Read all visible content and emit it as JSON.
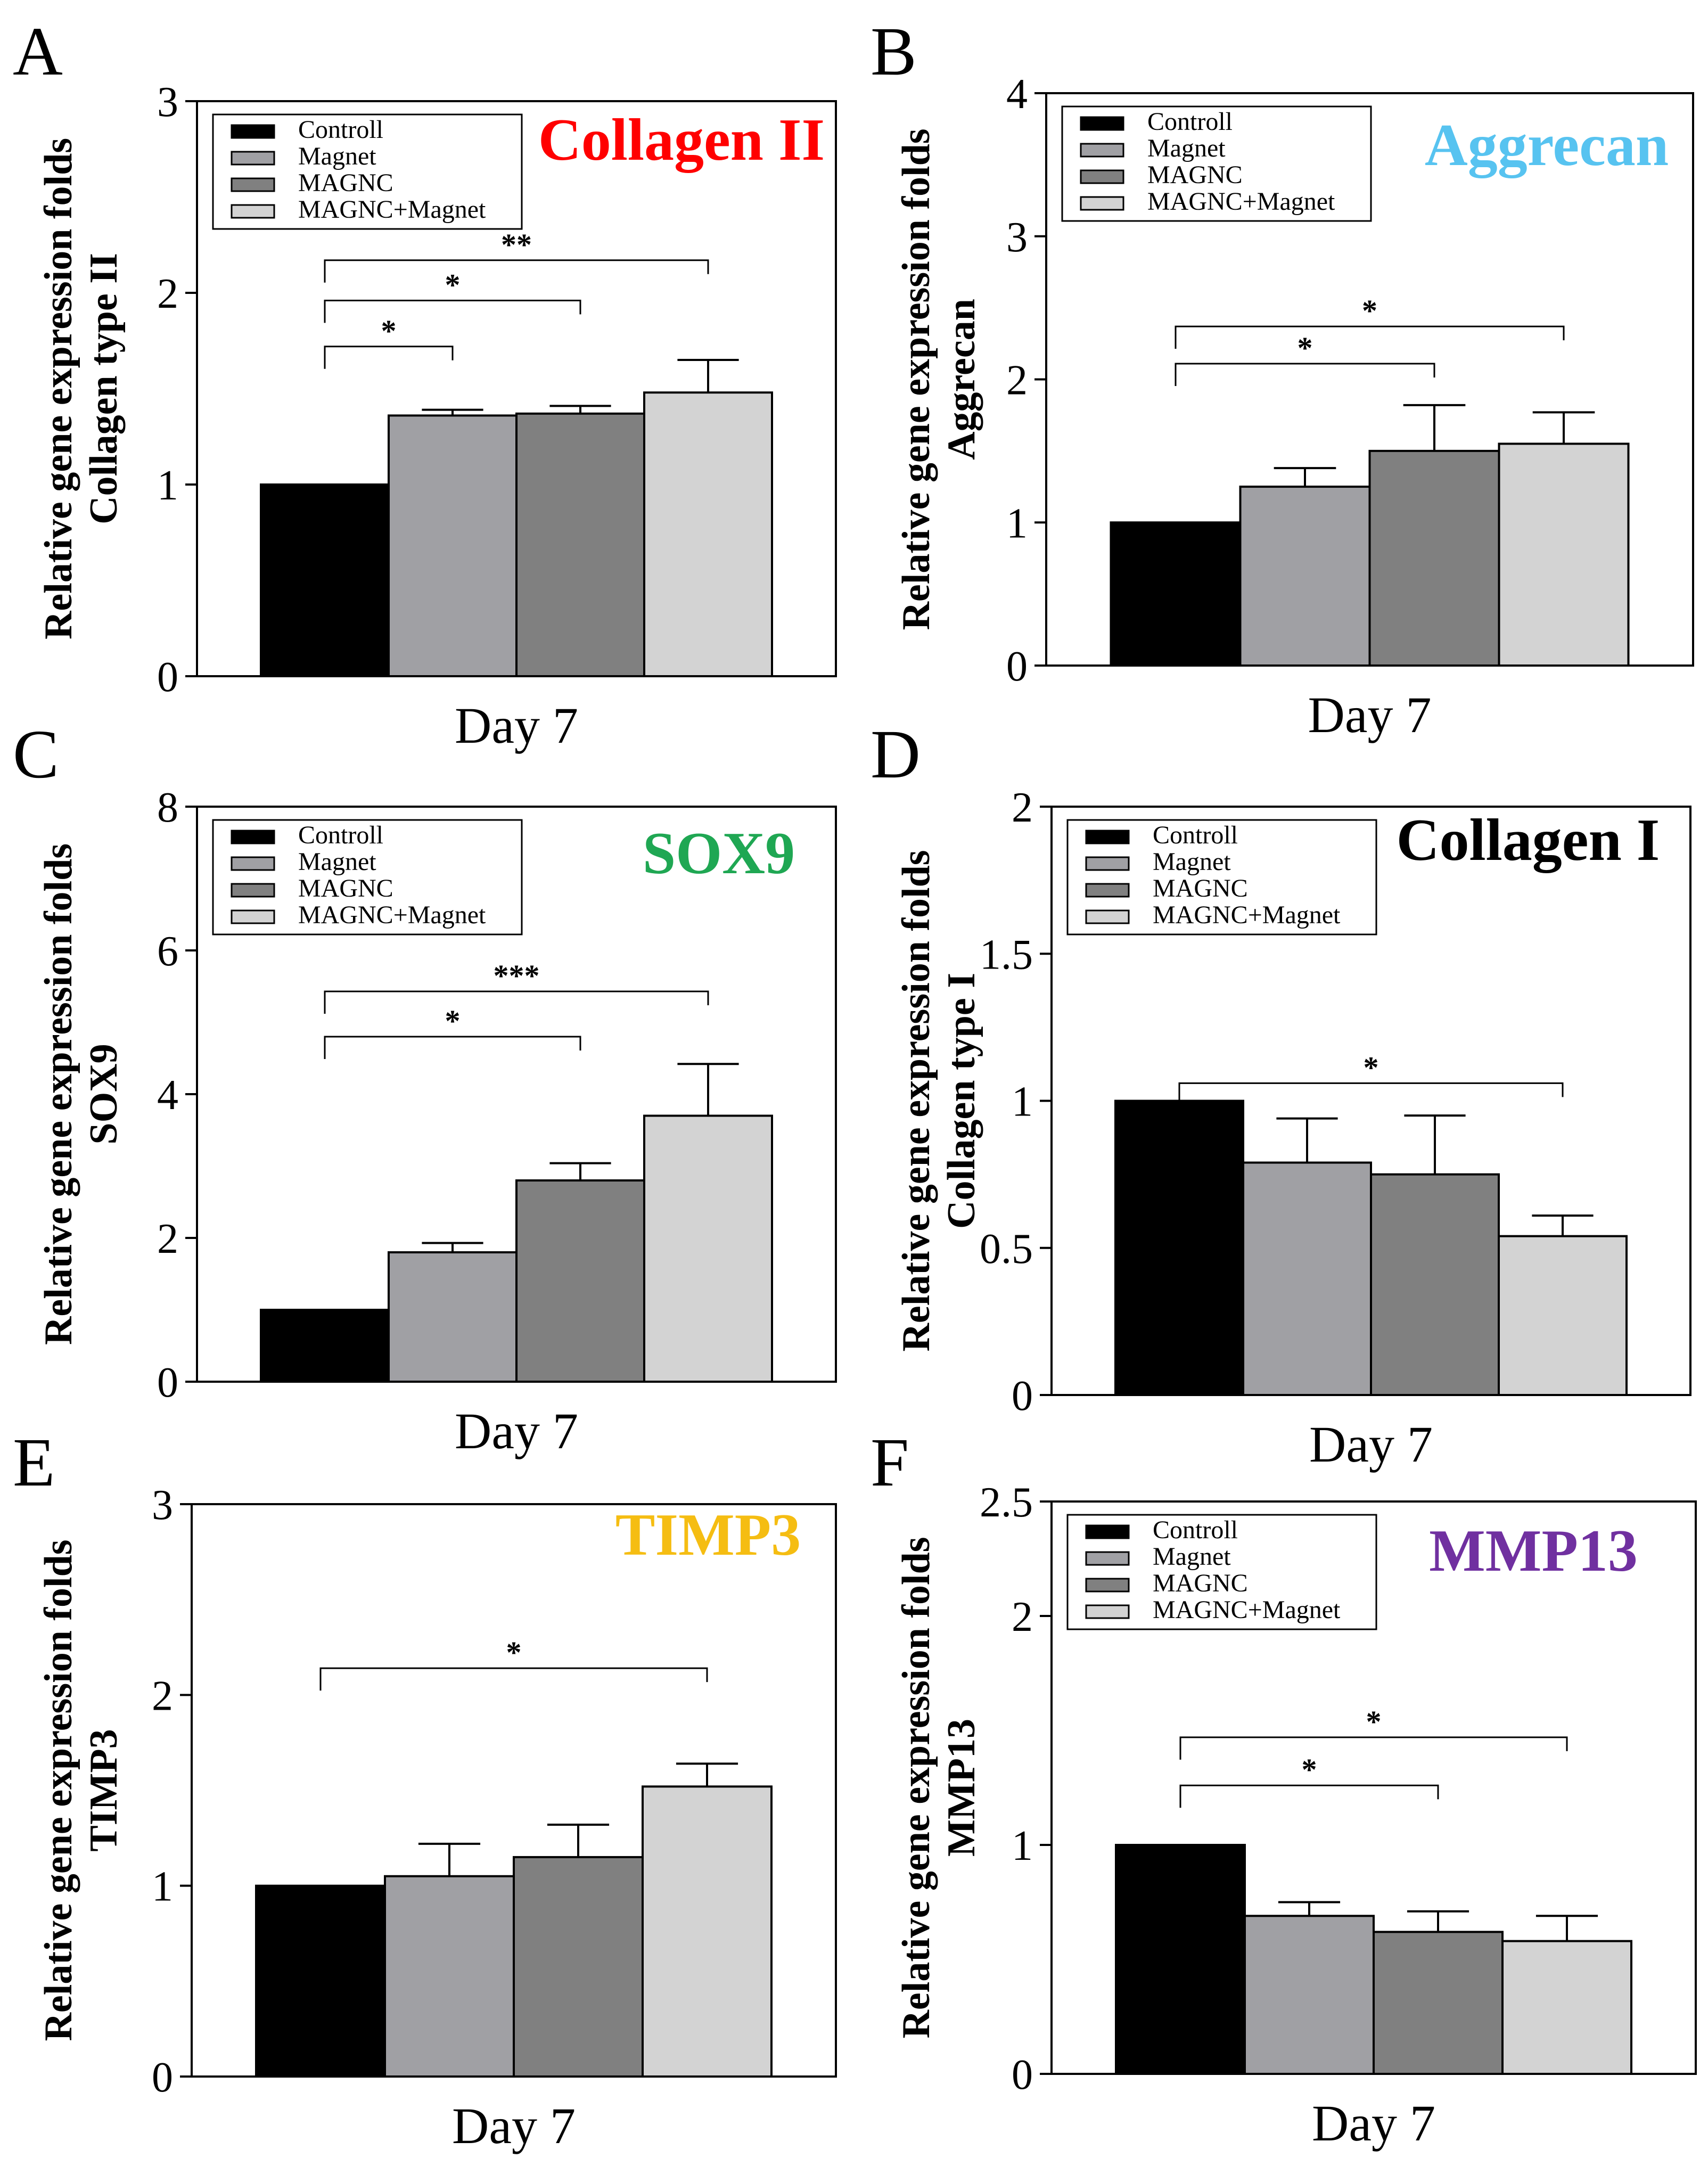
{
  "groups": [
    "Controll",
    "Magnet",
    "MAGNC",
    "MAGNC+Magnet"
  ],
  "colors": {
    "bars": [
      "#000000",
      "#a0a0a4",
      "#808080",
      "#d3d3d3"
    ],
    "red": "#ff0000",
    "blue": "#57c3f0",
    "green": "#1fa753",
    "black": "#000000",
    "yellow": "#f5bd12",
    "purple": "#7030a0"
  },
  "chart_data": [
    {
      "type": "bar",
      "panel": "A",
      "title": "Collagen II",
      "title_color": "red",
      "ylabel_line1": "Relative gene expression  folds",
      "ylabel_line2": "Collagen type II",
      "xlabel": "Day 7",
      "ylim": [
        0,
        3
      ],
      "yticks": [
        0,
        1,
        2,
        3
      ],
      "tick_labels": [
        "0",
        "1",
        "2",
        "3"
      ],
      "values": [
        1.0,
        1.36,
        1.37,
        1.48
      ],
      "errors": [
        0,
        0.03,
        0.04,
        0.17
      ],
      "legend": true,
      "significance": [
        {
          "from": 0,
          "to": 1,
          "label": "*",
          "y": 1.72
        },
        {
          "from": 0,
          "to": 2,
          "label": "*",
          "y": 1.96
        },
        {
          "from": 0,
          "to": 3,
          "label": "**",
          "y": 2.17
        }
      ]
    },
    {
      "type": "bar",
      "panel": "B",
      "title": "Aggrecan",
      "title_color": "blue",
      "ylabel_line1": "Relative gene expression  folds",
      "ylabel_line2": "Aggrecan",
      "xlabel": "Day 7",
      "ylim": [
        0,
        4
      ],
      "yticks": [
        0,
        1,
        2,
        3,
        4
      ],
      "tick_labels": [
        "0",
        "1",
        "2",
        "3",
        "4"
      ],
      "values": [
        1.0,
        1.25,
        1.5,
        1.55
      ],
      "errors": [
        0,
        0.13,
        0.32,
        0.22
      ],
      "legend": true,
      "significance": [
        {
          "from": 0,
          "to": 2,
          "label": "*",
          "y": 2.11
        },
        {
          "from": 0,
          "to": 3,
          "label": "*",
          "y": 2.37
        }
      ]
    },
    {
      "type": "bar",
      "panel": "C",
      "title": "SOX9",
      "title_color": "green",
      "ylabel_line1": "Relative gene expression  folds",
      "ylabel_line2": "SOX9",
      "xlabel": "Day 7",
      "ylim": [
        0,
        8
      ],
      "yticks": [
        0,
        2,
        4,
        6,
        8
      ],
      "tick_labels": [
        "0",
        "2",
        "4",
        "6",
        "8"
      ],
      "values": [
        1.0,
        1.8,
        2.8,
        3.7
      ],
      "errors": [
        0,
        0.13,
        0.24,
        0.72
      ],
      "legend": true,
      "significance": [
        {
          "from": 0,
          "to": 2,
          "label": "*",
          "y": 4.8
        },
        {
          "from": 0,
          "to": 3,
          "label": "***",
          "y": 5.43
        }
      ]
    },
    {
      "type": "bar",
      "panel": "D",
      "title": "Collagen I",
      "title_color": "black",
      "ylabel_line1": "Relative gene expression  folds",
      "ylabel_line2": "Collagen type I",
      "xlabel": "Day 7",
      "ylim": [
        0,
        2
      ],
      "yticks": [
        0,
        0.5,
        1,
        1.5,
        2
      ],
      "tick_labels": [
        "0",
        "0.5",
        "1",
        "1.5",
        "2"
      ],
      "values": [
        1.0,
        0.79,
        0.75,
        0.54
      ],
      "errors": [
        0,
        0.15,
        0.2,
        0.07
      ],
      "legend": true,
      "significance": [
        {
          "from": 0,
          "to": 3,
          "label": "*",
          "y": 1.06
        }
      ]
    },
    {
      "type": "bar",
      "panel": "E",
      "title": "TIMP3",
      "title_color": "yellow",
      "ylabel_line1": "Relative gene expression  folds",
      "ylabel_line2": "TIMP3",
      "xlabel": "Day 7",
      "ylim": [
        0,
        3
      ],
      "yticks": [
        0,
        1,
        2,
        3
      ],
      "tick_labels": [
        "0",
        "1",
        "2",
        "3"
      ],
      "values": [
        1.0,
        1.05,
        1.15,
        1.52
      ],
      "errors": [
        0,
        0.17,
        0.17,
        0.12
      ],
      "legend": false,
      "significance": [
        {
          "from": 0,
          "to": 3,
          "label": "*",
          "y": 2.14
        }
      ]
    },
    {
      "type": "bar",
      "panel": "F",
      "title": "MMP13",
      "title_color": "purple",
      "ylabel_line1": "Relative gene expression  folds",
      "ylabel_line2": "MMP13",
      "xlabel": "Day 7",
      "ylim": [
        0,
        2.5
      ],
      "yticks": [
        0,
        1,
        2,
        2.5
      ],
      "tick_labels": [
        "0",
        "1",
        "2",
        "2.5"
      ],
      "values": [
        1.0,
        0.69,
        0.62,
        0.58
      ],
      "errors": [
        0,
        0.06,
        0.09,
        0.11
      ],
      "legend": true,
      "significance": [
        {
          "from": 0,
          "to": 2,
          "label": "*",
          "y": 1.26
        },
        {
          "from": 0,
          "to": 3,
          "label": "*",
          "y": 1.47
        }
      ]
    }
  ]
}
